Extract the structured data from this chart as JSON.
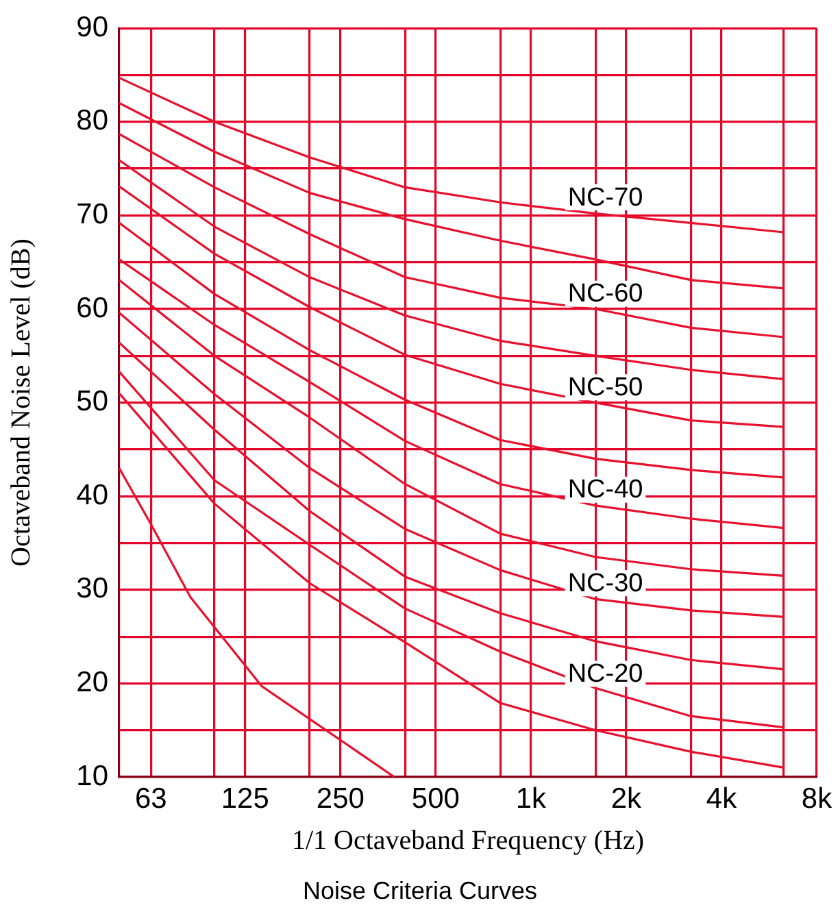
{
  "chart_data": {
    "type": "line",
    "xlabel": "1/1 Octaveband Frequency (Hz)",
    "ylabel": "Octaveband Noise Level (dB)",
    "annotations": [
      "Noise Criteria Curves"
    ],
    "x": [
      50,
      100,
      200,
      400,
      800,
      1600,
      3200,
      6300
    ],
    "series": [
      {
        "name": "NC-70",
        "color": "#e8112d",
        "values": [
          84.7,
          80.0,
          76.2,
          73.0,
          71.4,
          70.2,
          69.2,
          68.2
        ]
      },
      {
        "color": "#e8112d",
        "values": [
          82.0,
          76.8,
          72.4,
          69.6,
          67.3,
          65.3,
          63.1,
          62.2
        ]
      },
      {
        "name": "NC-60",
        "color": "#e8112d",
        "values": [
          78.7,
          73.0,
          68.0,
          63.4,
          61.2,
          60.0,
          58.0,
          57.0
        ]
      },
      {
        "color": "#e8112d",
        "values": [
          75.9,
          68.8,
          63.4,
          59.3,
          56.6,
          55.0,
          53.5,
          52.5
        ]
      },
      {
        "name": "NC-50",
        "color": "#e8112d",
        "values": [
          73.1,
          65.9,
          60.2,
          55.1,
          52.0,
          50.0,
          48.1,
          47.4
        ]
      },
      {
        "color": "#e8112d",
        "values": [
          69.2,
          61.6,
          55.6,
          50.3,
          46.0,
          44.0,
          42.8,
          42.0
        ]
      },
      {
        "name": "NC-40",
        "color": "#e8112d",
        "values": [
          65.3,
          58.3,
          52.2,
          45.9,
          41.3,
          39.0,
          37.6,
          36.6
        ]
      },
      {
        "color": "#e8112d",
        "values": [
          63.1,
          55.0,
          48.4,
          41.3,
          36.0,
          33.5,
          32.2,
          31.5
        ]
      },
      {
        "name": "NC-30",
        "color": "#e8112d",
        "values": [
          59.6,
          50.9,
          43.0,
          36.5,
          32.1,
          29.0,
          27.8,
          27.1
        ]
      },
      {
        "color": "#e8112d",
        "values": [
          56.4,
          47.1,
          38.4,
          31.4,
          27.5,
          24.5,
          22.5,
          21.5
        ]
      },
      {
        "name": "NC-20",
        "color": "#e8112d",
        "values": [
          53.3,
          41.7,
          34.8,
          28.0,
          23.4,
          19.5,
          16.5,
          15.3
        ]
      },
      {
        "color": "#e8112d",
        "values": [
          51.0,
          39.2,
          30.7,
          24.4,
          17.9,
          15.0,
          12.7,
          11.0
        ]
      },
      {
        "color": "#e8112d",
        "x": [
          50,
          63,
          84,
          141,
          370
        ],
        "values": [
          43.0,
          37.0,
          29.2,
          19.7,
          10.0
        ]
      }
    ],
    "log": "x",
    "xlim": [
      50,
      8000
    ],
    "xticks": [
      63,
      {
        "value": 100,
        "label": null
      },
      125,
      {
        "value": 200,
        "label": null
      },
      250,
      {
        "value": 400,
        "label": null
      },
      500,
      {
        "value": 800,
        "label": null
      },
      {
        "value": 1000,
        "label": "1k"
      },
      {
        "value": 1600,
        "label": null
      },
      {
        "value": 2000,
        "label": "2k"
      },
      {
        "value": 3200,
        "label": null
      },
      {
        "value": 4000,
        "label": "4k"
      },
      {
        "value": 6300,
        "label": null
      },
      {
        "value": 8000,
        "label": "8k"
      }
    ],
    "ylim": [
      10,
      90
    ],
    "yticks": [
      10,
      {
        "value": 15,
        "label": null
      },
      20,
      {
        "value": 25,
        "label": null
      },
      30,
      {
        "value": 35,
        "label": null
      },
      40,
      {
        "value": 45,
        "label": null
      },
      50,
      {
        "value": 55,
        "label": null
      },
      60,
      {
        "value": 65,
        "label": null
      },
      70,
      {
        "value": 75,
        "label": null
      },
      80,
      {
        "value": 85,
        "label": null
      },
      90
    ],
    "grid": true,
    "legend": false,
    "marker": "none",
    "line_style": "solid"
  }
}
